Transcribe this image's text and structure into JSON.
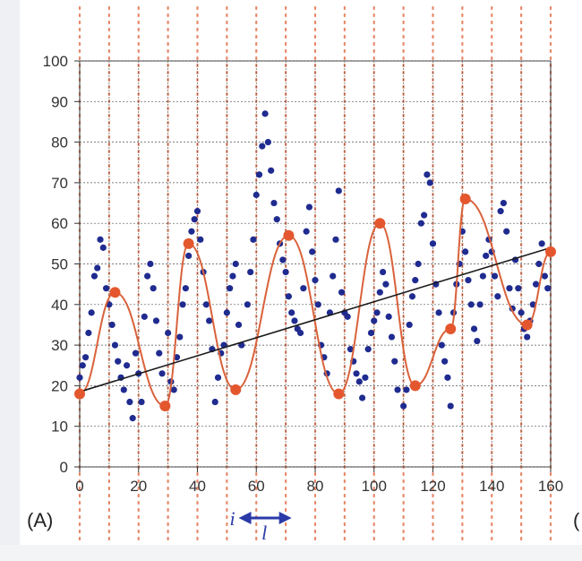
{
  "panel": {
    "label": "(A)",
    "cut_label": "("
  },
  "colors": {
    "dots": "#1f2b8f",
    "curve": "#d9623b",
    "extrema": "#e4572e",
    "trend": "#1a1a1a",
    "dotted_vlines": "#e7896a",
    "grid": "#555555"
  },
  "annotation": {
    "i": "i",
    "l": "l",
    "arrow_from": 54,
    "arrow_to": 72
  },
  "chart_data": {
    "type": "scatter",
    "xlim": [
      0,
      160
    ],
    "ylim": [
      0,
      100
    ],
    "x_ticks": [
      0,
      20,
      40,
      60,
      80,
      100,
      120,
      140,
      160
    ],
    "y_ticks": [
      0,
      10,
      20,
      30,
      40,
      50,
      60,
      70,
      80,
      90,
      100
    ],
    "grid": true,
    "trend_line": {
      "x": [
        0,
        160
      ],
      "y": [
        18.5,
        54
      ]
    },
    "series": [
      {
        "kind": "scatter",
        "points": [
          [
            0,
            22
          ],
          [
            1,
            25
          ],
          [
            2,
            27
          ],
          [
            3,
            33
          ],
          [
            4,
            38
          ],
          [
            5,
            47
          ],
          [
            6,
            49
          ],
          [
            7,
            56
          ],
          [
            8,
            54
          ],
          [
            9,
            44
          ],
          [
            10,
            40
          ],
          [
            11,
            35
          ],
          [
            12,
            30
          ],
          [
            13,
            26
          ],
          [
            14,
            22
          ],
          [
            15,
            19
          ],
          [
            16,
            25
          ],
          [
            17,
            16
          ],
          [
            18,
            12
          ],
          [
            19,
            28
          ],
          [
            20,
            23
          ],
          [
            21,
            16
          ],
          [
            22,
            37
          ],
          [
            23,
            47
          ],
          [
            24,
            50
          ],
          [
            25,
            44
          ],
          [
            26,
            36
          ],
          [
            27,
            28
          ],
          [
            28,
            23
          ],
          [
            30,
            33
          ],
          [
            31,
            21
          ],
          [
            32,
            19
          ],
          [
            33,
            27
          ],
          [
            34,
            32
          ],
          [
            35,
            40
          ],
          [
            36,
            44
          ],
          [
            37,
            52
          ],
          [
            38,
            58
          ],
          [
            39,
            61
          ],
          [
            40,
            63
          ],
          [
            41,
            56
          ],
          [
            42,
            48
          ],
          [
            43,
            40
          ],
          [
            44,
            36
          ],
          [
            45,
            29
          ],
          [
            46,
            16
          ],
          [
            47,
            22
          ],
          [
            48,
            28
          ],
          [
            49,
            30
          ],
          [
            50,
            38
          ],
          [
            51,
            44
          ],
          [
            52,
            47
          ],
          [
            53,
            50
          ],
          [
            54,
            35
          ],
          [
            55,
            30
          ],
          [
            57,
            40
          ],
          [
            58,
            48
          ],
          [
            59,
            56
          ],
          [
            60,
            67
          ],
          [
            61,
            72
          ],
          [
            62,
            79
          ],
          [
            63,
            87
          ],
          [
            64,
            80
          ],
          [
            65,
            73
          ],
          [
            66,
            65
          ],
          [
            67,
            61
          ],
          [
            68,
            55
          ],
          [
            69,
            51
          ],
          [
            70,
            48
          ],
          [
            71,
            42
          ],
          [
            72,
            38
          ],
          [
            73,
            36
          ],
          [
            74,
            34
          ],
          [
            75,
            33
          ],
          [
            76,
            44
          ],
          [
            77,
            58
          ],
          [
            78,
            64
          ],
          [
            79,
            53
          ],
          [
            80,
            46
          ],
          [
            81,
            40
          ],
          [
            82,
            30
          ],
          [
            83,
            27
          ],
          [
            84,
            23
          ],
          [
            85,
            38
          ],
          [
            86,
            47
          ],
          [
            87,
            56
          ],
          [
            88,
            68
          ],
          [
            89,
            43
          ],
          [
            90,
            38
          ],
          [
            91,
            37
          ],
          [
            92,
            29
          ],
          [
            93,
            26
          ],
          [
            94,
            23
          ],
          [
            95,
            21
          ],
          [
            96,
            17
          ],
          [
            97,
            22
          ],
          [
            98,
            29
          ],
          [
            99,
            33
          ],
          [
            100,
            36
          ],
          [
            101,
            38
          ],
          [
            102,
            43
          ],
          [
            103,
            48
          ],
          [
            104,
            45
          ],
          [
            105,
            37
          ],
          [
            106,
            32
          ],
          [
            107,
            26
          ],
          [
            108,
            19
          ],
          [
            110,
            15
          ],
          [
            111,
            19
          ],
          [
            112,
            35
          ],
          [
            113,
            42
          ],
          [
            114,
            46
          ],
          [
            115,
            50
          ],
          [
            116,
            60
          ],
          [
            117,
            62
          ],
          [
            118,
            72
          ],
          [
            119,
            70
          ],
          [
            120,
            55
          ],
          [
            121,
            45
          ],
          [
            122,
            38
          ],
          [
            123,
            30
          ],
          [
            124,
            26
          ],
          [
            125,
            22
          ],
          [
            126,
            15
          ],
          [
            127,
            38
          ],
          [
            128,
            45
          ],
          [
            129,
            50
          ],
          [
            130,
            58
          ],
          [
            131,
            53
          ],
          [
            132,
            46
          ],
          [
            133,
            40
          ],
          [
            134,
            34
          ],
          [
            135,
            31
          ],
          [
            136,
            40
          ],
          [
            137,
            47
          ],
          [
            138,
            52
          ],
          [
            139,
            56
          ],
          [
            140,
            53
          ],
          [
            141,
            47
          ],
          [
            142,
            42
          ],
          [
            143,
            63
          ],
          [
            144,
            65
          ],
          [
            145,
            58
          ],
          [
            146,
            44
          ],
          [
            147,
            39
          ],
          [
            148,
            51
          ],
          [
            149,
            44
          ],
          [
            150,
            38
          ],
          [
            151,
            34
          ],
          [
            152,
            32
          ],
          [
            153,
            36
          ],
          [
            154,
            40
          ],
          [
            155,
            45
          ],
          [
            156,
            50
          ],
          [
            157,
            55
          ],
          [
            158,
            47
          ],
          [
            159,
            44
          ]
        ]
      },
      {
        "kind": "extrema",
        "points": [
          [
            0,
            18
          ],
          [
            12,
            43
          ],
          [
            29,
            15
          ],
          [
            37,
            55
          ],
          [
            53,
            19
          ],
          [
            71,
            57
          ],
          [
            88,
            18
          ],
          [
            102,
            60
          ],
          [
            114,
            20
          ],
          [
            126,
            34
          ],
          [
            131,
            66
          ],
          [
            152,
            35
          ],
          [
            160,
            53
          ]
        ]
      }
    ]
  }
}
